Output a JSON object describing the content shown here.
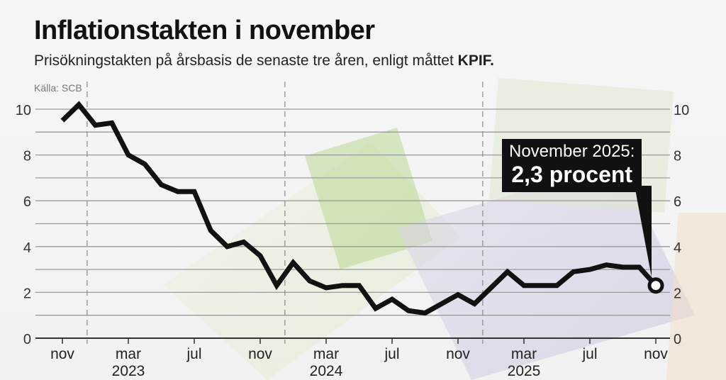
{
  "title": "Inflationstakten i november",
  "subtitle_prefix": "Prisökningstakten på årsbasis de senaste tre åren, enligt måttet ",
  "subtitle_bold": "KPIF.",
  "source": "Källa: SCB",
  "callout": {
    "line1": "November 2025:",
    "line2": "2,3 procent"
  },
  "colors": {
    "line": "#111111",
    "grid": "#9a9a9a",
    "callout_bg": "#111111"
  },
  "chart_data": {
    "type": "line",
    "title": "Inflationstakten i november",
    "xlabel": "",
    "ylabel": "",
    "ylim": [
      0,
      10
    ],
    "yticks": [
      0,
      2,
      4,
      6,
      8,
      10
    ],
    "grid": true,
    "x": [
      "2022-11",
      "2022-12",
      "2023-01",
      "2023-02",
      "2023-03",
      "2023-04",
      "2023-05",
      "2023-06",
      "2023-07",
      "2023-08",
      "2023-09",
      "2023-10",
      "2023-11",
      "2023-12",
      "2024-01",
      "2024-02",
      "2024-03",
      "2024-04",
      "2024-05",
      "2024-06",
      "2024-07",
      "2024-08",
      "2024-09",
      "2024-10",
      "2024-11",
      "2024-12",
      "2025-01",
      "2025-02",
      "2025-03",
      "2025-04",
      "2025-05",
      "2025-06",
      "2025-07",
      "2025-08",
      "2025-09",
      "2025-10",
      "2025-11"
    ],
    "values": [
      9.5,
      10.2,
      9.3,
      9.4,
      8.0,
      7.6,
      6.7,
      6.4,
      6.4,
      4.7,
      4.0,
      4.2,
      3.6,
      2.3,
      3.3,
      2.5,
      2.2,
      2.3,
      2.3,
      1.3,
      1.7,
      1.2,
      1.1,
      1.5,
      1.9,
      1.5,
      2.2,
      2.9,
      2.3,
      2.3,
      2.3,
      2.9,
      3.0,
      3.2,
      3.1,
      3.1,
      2.3
    ],
    "xticks": [
      {
        "month": 0,
        "label": "nov",
        "year": ""
      },
      {
        "month": 4,
        "label": "mar",
        "year": "2023"
      },
      {
        "month": 8,
        "label": "jul",
        "year": ""
      },
      {
        "month": 12,
        "label": "nov",
        "year": ""
      },
      {
        "month": 16,
        "label": "mar",
        "year": "2024"
      },
      {
        "month": 20,
        "label": "jul",
        "year": ""
      },
      {
        "month": 24,
        "label": "nov",
        "year": ""
      },
      {
        "month": 28,
        "label": "mar",
        "year": "2025"
      },
      {
        "month": 32,
        "label": "jul",
        "year": ""
      },
      {
        "month": 36,
        "label": "nov",
        "year": ""
      }
    ]
  }
}
